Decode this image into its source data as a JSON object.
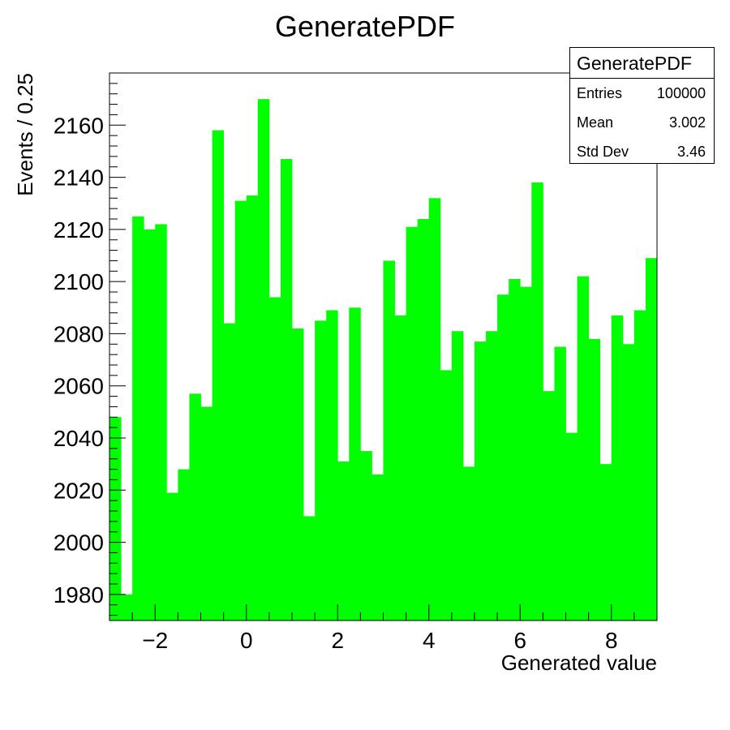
{
  "chart_data": {
    "type": "bar",
    "title": "GeneratePDF",
    "xlabel": "Generated value",
    "ylabel": "Events / 0.25",
    "xlim": [
      -3,
      9
    ],
    "ylim": [
      1970,
      2180
    ],
    "bin_width": 0.25,
    "bar_color": "#00ff00",
    "x_ticks": [
      -2,
      0,
      2,
      4,
      6,
      8
    ],
    "x_tick_labels": [
      "−2",
      "0",
      "2",
      "4",
      "6",
      "8"
    ],
    "y_ticks": [
      1980,
      2000,
      2020,
      2040,
      2060,
      2080,
      2100,
      2120,
      2140,
      2160
    ],
    "y_tick_labels": [
      "1980",
      "2000",
      "2020",
      "2040",
      "2060",
      "2080",
      "2100",
      "2120",
      "2140",
      "2160"
    ],
    "bin_edges_start": -3,
    "values": [
      2048,
      1980,
      2125,
      2120,
      2122,
      2019,
      2028,
      2057,
      2052,
      2158,
      2084,
      2131,
      2133,
      2170,
      2094,
      2147,
      2082,
      2010,
      2085,
      2089,
      2031,
      2090,
      2035,
      2026,
      2108,
      2087,
      2121,
      2124,
      2132,
      2066,
      2081,
      2029,
      2077,
      2081,
      2095,
      2101,
      2098,
      2138,
      2058,
      2075,
      2042,
      2102,
      2078,
      2030,
      2087,
      2076,
      2089,
      2109
    ],
    "stats": {
      "title": "GeneratePDF",
      "rows": [
        {
          "label": "Entries",
          "value": "100000"
        },
        {
          "label": "Mean",
          "value": "3.002"
        },
        {
          "label": "Std Dev",
          "value": "3.46"
        }
      ]
    }
  }
}
